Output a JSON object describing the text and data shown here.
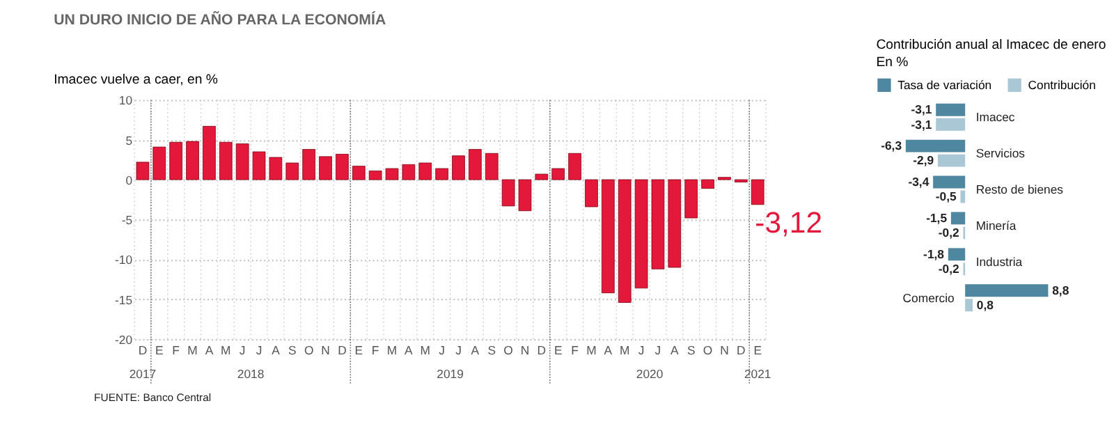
{
  "chart_data": [
    {
      "type": "bar",
      "title": "UN DURO INICIO DE AÑO PARA LA ECONOMÍA",
      "subtitle": "Imacec vuelve a caer, en %",
      "categories": [
        "D",
        "E",
        "F",
        "M",
        "A",
        "M",
        "J",
        "J",
        "A",
        "S",
        "O",
        "N",
        "D",
        "E",
        "F",
        "M",
        "A",
        "M",
        "J",
        "J",
        "A",
        "S",
        "O",
        "N",
        "D",
        "E",
        "F",
        "M",
        "A",
        "M",
        "J",
        "J",
        "A",
        "S",
        "O",
        "N",
        "D",
        "E"
      ],
      "values": [
        2.2,
        4.1,
        4.7,
        4.8,
        6.7,
        4.7,
        4.5,
        3.5,
        2.8,
        2.1,
        3.8,
        2.9,
        3.2,
        1.7,
        1.1,
        1.4,
        1.9,
        2.1,
        1.4,
        3.0,
        3.8,
        3.3,
        -3.3,
        -3.9,
        0.7,
        1.4,
        3.3,
        -3.4,
        -14.2,
        -15.4,
        -13.6,
        -11.2,
        -11.0,
        -4.8,
        -1.1,
        0.3,
        -0.3,
        -3.12
      ],
      "value_labels": [
        null,
        null,
        null,
        null,
        null,
        null,
        null,
        null,
        null,
        null,
        null,
        null,
        null,
        null,
        null,
        null,
        null,
        null,
        null,
        null,
        null,
        null,
        null,
        null,
        null,
        null,
        null,
        null,
        null,
        null,
        null,
        null,
        null,
        null,
        null,
        null,
        null,
        "-3,12"
      ],
      "color": "#e3183a",
      "ylim": [
        -20,
        10
      ],
      "yticks": [
        -20,
        -15,
        -10,
        -5,
        0,
        5,
        10
      ],
      "grid": true,
      "annotations": [
        "2017",
        "2018",
        "2019",
        "2020",
        "2021",
        "FUENTE: Banco Central"
      ]
    },
    {
      "type": "bar",
      "orientation": "horizontal",
      "title": "Contribución anual al Imacec de enero",
      "subtitle": "En %",
      "categories": [
        "Imacec",
        "Servicios",
        "Resto de bienes",
        "Minería",
        "Industria",
        "Comercio"
      ],
      "series": [
        {
          "name": "Tasa de variación",
          "color": "#4f86a0",
          "values": [
            -3.1,
            -6.3,
            -3.4,
            -1.5,
            -1.8,
            8.8
          ],
          "value_labels": [
            "-3,1",
            "-6,3",
            "-3,4",
            "-1,5",
            "-1,8",
            "8,8"
          ]
        },
        {
          "name": "Contribución",
          "color": "#a9c7d4",
          "values": [
            -3.1,
            -2.9,
            -0.5,
            -0.2,
            -0.2,
            0.8
          ],
          "value_labels": [
            "-3,1",
            "-2,9",
            "-0,5",
            "-0,2",
            "-0,2",
            "0,8"
          ]
        }
      ],
      "legend": "top"
    }
  ]
}
